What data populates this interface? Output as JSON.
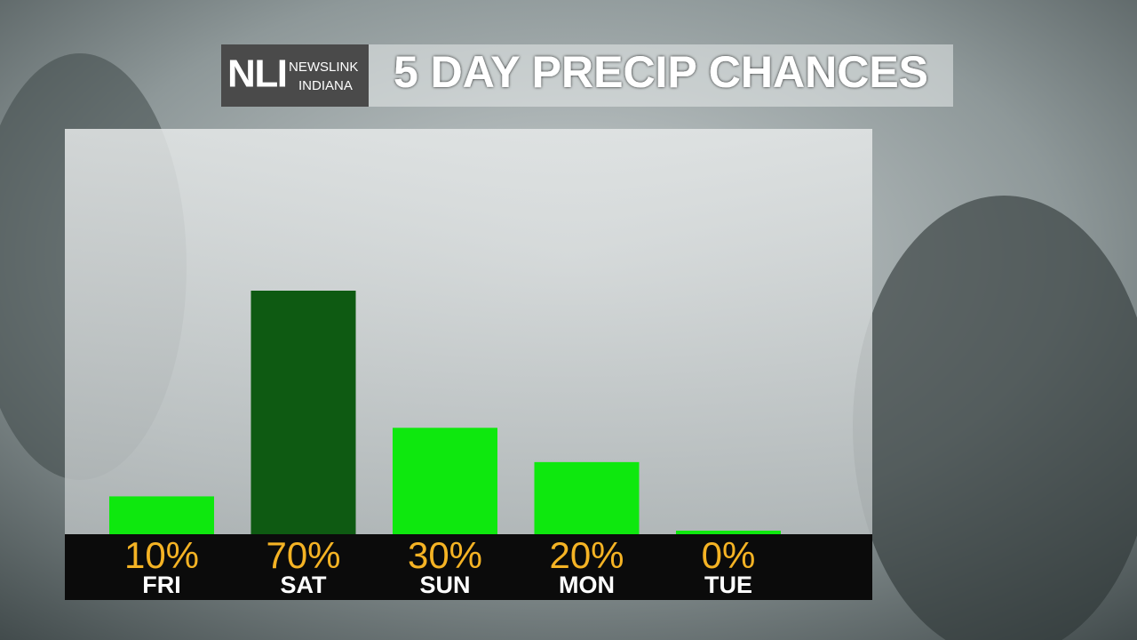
{
  "logo": {
    "mark": "NLI",
    "name": "NEWSLINK",
    "region": "INDIANA"
  },
  "chart_data": {
    "type": "bar",
    "title": "5 DAY PRECIP CHANCES",
    "categories": [
      "FRI",
      "SAT",
      "SUN",
      "MON",
      "TUE"
    ],
    "values": [
      10,
      70,
      30,
      20,
      0
    ],
    "value_labels": [
      "10%",
      "70%",
      "30%",
      "20%",
      "0%"
    ],
    "colors": [
      "#0ee80e",
      "#0e5a12",
      "#0ee80e",
      "#0ee80e",
      "#0ee80e"
    ]
  }
}
